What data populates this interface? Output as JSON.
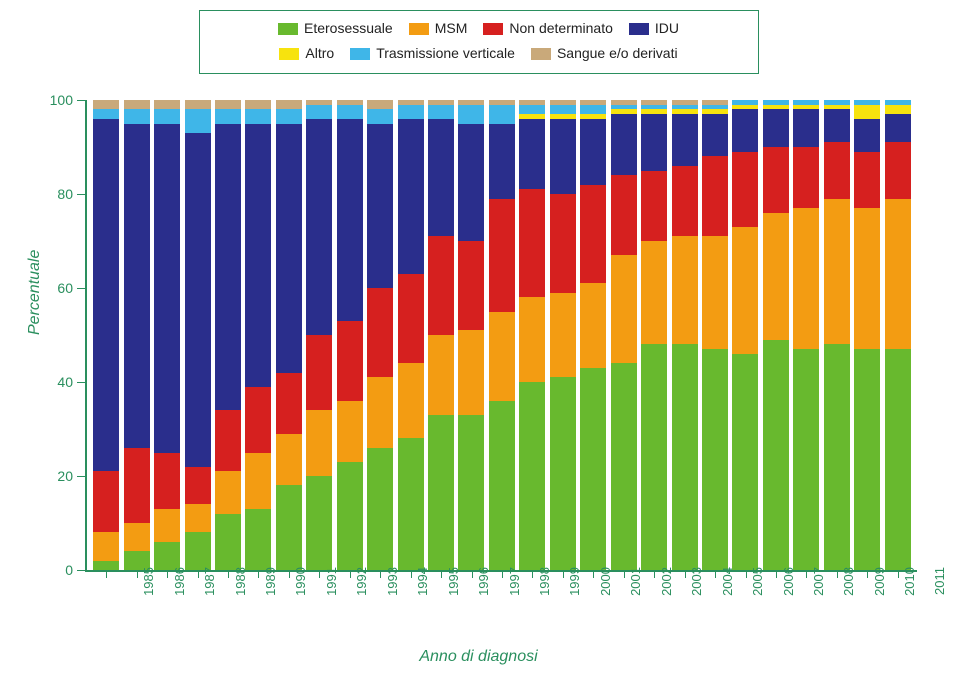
{
  "chart": {
    "type": "stacked-bar-percent",
    "background_color": "#ffffff",
    "axis_color": "#2a8f5e",
    "label_fontsize": 14,
    "title_fontsize": 16,
    "ylabel": "Percentuale",
    "xlabel": "Anno di diagnosi",
    "ylim": [
      0,
      100
    ],
    "ytick_step": 20,
    "yticks": [
      "0",
      "20",
      "40",
      "60",
      "80",
      "100"
    ],
    "categories": [
      "1985",
      "1986",
      "1987",
      "1988",
      "1989",
      "1990",
      "1991",
      "1992",
      "1993",
      "1994",
      "1995",
      "1996",
      "1997",
      "1998",
      "1999",
      "2000",
      "2001",
      "2002",
      "2003",
      "2004",
      "2005",
      "2006",
      "2007",
      "2008",
      "2009",
      "2010",
      "2011"
    ],
    "legend": {
      "border_color": "#2a8f5e",
      "items": [
        {
          "key": "etero",
          "label": "Eterosessuale",
          "color": "#68b92e"
        },
        {
          "key": "msm",
          "label": "MSM",
          "color": "#f39c12"
        },
        {
          "key": "nondet",
          "label": "Non determinato",
          "color": "#d6201f"
        },
        {
          "key": "idu",
          "label": "IDU",
          "color": "#2a2e8c"
        },
        {
          "key": "altro",
          "label": "Altro",
          "color": "#f7e30e"
        },
        {
          "key": "vert",
          "label": "Trasmissione verticale",
          "color": "#3fb6e8"
        },
        {
          "key": "sangue",
          "label": "Sangue e/o derivati",
          "color": "#c9a97a"
        }
      ]
    },
    "stack_order": [
      "etero",
      "msm",
      "nondet",
      "idu",
      "altro",
      "vert",
      "sangue"
    ],
    "colors": {
      "etero": "#68b92e",
      "msm": "#f39c12",
      "nondet": "#d6201f",
      "idu": "#2a2e8c",
      "altro": "#f7e30e",
      "vert": "#3fb6e8",
      "sangue": "#c9a97a"
    },
    "data": [
      {
        "year": "1985",
        "etero": 2,
        "msm": 6,
        "nondet": 13,
        "idu": 75,
        "altro": 0,
        "vert": 2,
        "sangue": 2
      },
      {
        "year": "1986",
        "etero": 4,
        "msm": 6,
        "nondet": 16,
        "idu": 69,
        "altro": 0,
        "vert": 3,
        "sangue": 2
      },
      {
        "year": "1987",
        "etero": 6,
        "msm": 7,
        "nondet": 12,
        "idu": 70,
        "altro": 0,
        "vert": 3,
        "sangue": 2
      },
      {
        "year": "1988",
        "etero": 8,
        "msm": 6,
        "nondet": 8,
        "idu": 71,
        "altro": 0,
        "vert": 5,
        "sangue": 2
      },
      {
        "year": "1989",
        "etero": 12,
        "msm": 9,
        "nondet": 13,
        "idu": 61,
        "altro": 0,
        "vert": 3,
        "sangue": 2
      },
      {
        "year": "1990",
        "etero": 13,
        "msm": 12,
        "nondet": 14,
        "idu": 56,
        "altro": 0,
        "vert": 3,
        "sangue": 2
      },
      {
        "year": "1991",
        "etero": 18,
        "msm": 11,
        "nondet": 13,
        "idu": 53,
        "altro": 0,
        "vert": 3,
        "sangue": 2
      },
      {
        "year": "1992",
        "etero": 20,
        "msm": 14,
        "nondet": 16,
        "idu": 46,
        "altro": 0,
        "vert": 3,
        "sangue": 1
      },
      {
        "year": "1993",
        "etero": 23,
        "msm": 13,
        "nondet": 17,
        "idu": 43,
        "altro": 0,
        "vert": 3,
        "sangue": 1
      },
      {
        "year": "1994",
        "etero": 26,
        "msm": 15,
        "nondet": 19,
        "idu": 35,
        "altro": 0,
        "vert": 3,
        "sangue": 2
      },
      {
        "year": "1995",
        "etero": 28,
        "msm": 16,
        "nondet": 19,
        "idu": 33,
        "altro": 0,
        "vert": 3,
        "sangue": 1
      },
      {
        "year": "1996",
        "etero": 33,
        "msm": 17,
        "nondet": 21,
        "idu": 25,
        "altro": 0,
        "vert": 3,
        "sangue": 1
      },
      {
        "year": "1997",
        "etero": 33,
        "msm": 18,
        "nondet": 19,
        "idu": 25,
        "altro": 0,
        "vert": 4,
        "sangue": 1
      },
      {
        "year": "1998",
        "etero": 36,
        "msm": 19,
        "nondet": 24,
        "idu": 16,
        "altro": 0,
        "vert": 4,
        "sangue": 1
      },
      {
        "year": "1999",
        "etero": 40,
        "msm": 18,
        "nondet": 23,
        "idu": 15,
        "altro": 1,
        "vert": 2,
        "sangue": 1
      },
      {
        "year": "2000",
        "etero": 41,
        "msm": 18,
        "nondet": 21,
        "idu": 16,
        "altro": 1,
        "vert": 2,
        "sangue": 1
      },
      {
        "year": "2001",
        "etero": 43,
        "msm": 18,
        "nondet": 21,
        "idu": 14,
        "altro": 1,
        "vert": 2,
        "sangue": 1
      },
      {
        "year": "2002",
        "etero": 44,
        "msm": 23,
        "nondet": 17,
        "idu": 13,
        "altro": 1,
        "vert": 1,
        "sangue": 1
      },
      {
        "year": "2003",
        "etero": 48,
        "msm": 22,
        "nondet": 15,
        "idu": 12,
        "altro": 1,
        "vert": 1,
        "sangue": 1
      },
      {
        "year": "2004",
        "etero": 48,
        "msm": 23,
        "nondet": 15,
        "idu": 11,
        "altro": 1,
        "vert": 1,
        "sangue": 1
      },
      {
        "year": "2005",
        "etero": 47,
        "msm": 24,
        "nondet": 17,
        "idu": 9,
        "altro": 1,
        "vert": 1,
        "sangue": 1
      },
      {
        "year": "2006",
        "etero": 46,
        "msm": 27,
        "nondet": 16,
        "idu": 9,
        "altro": 1,
        "vert": 1,
        "sangue": 0
      },
      {
        "year": "2007",
        "etero": 49,
        "msm": 27,
        "nondet": 14,
        "idu": 8,
        "altro": 1,
        "vert": 1,
        "sangue": 0
      },
      {
        "year": "2008",
        "etero": 47,
        "msm": 30,
        "nondet": 13,
        "idu": 8,
        "altro": 1,
        "vert": 1,
        "sangue": 0
      },
      {
        "year": "2009",
        "etero": 48,
        "msm": 31,
        "nondet": 12,
        "idu": 7,
        "altro": 1,
        "vert": 1,
        "sangue": 0
      },
      {
        "year": "2010",
        "etero": 47,
        "msm": 30,
        "nondet": 12,
        "idu": 7,
        "altro": 3,
        "vert": 1,
        "sangue": 0
      },
      {
        "year": "2011",
        "etero": 47,
        "msm": 32,
        "nondet": 12,
        "idu": 6,
        "altro": 2,
        "vert": 1,
        "sangue": 0
      }
    ]
  }
}
